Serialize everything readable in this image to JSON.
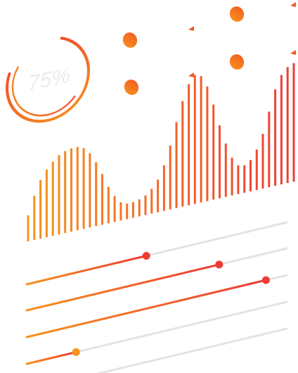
{
  "colors": {
    "accent_orange": "#F7941D",
    "accent_red": "#EF3B36",
    "track_gray": "#E3E3E3",
    "gauge_text": "#EBEBEB"
  },
  "gauge": {
    "label": "75%",
    "value_percent": 75
  },
  "bars": {
    "levels": [
      0.2,
      0.34,
      0.45,
      0.52,
      0.57,
      0.61,
      0.63,
      0.64,
      0.64,
      0.62,
      0.57,
      0.49,
      0.39,
      0.28,
      0.2,
      0.14,
      0.12,
      0.12,
      0.13,
      0.15,
      0.19,
      0.25,
      0.35,
      0.49,
      0.66,
      0.81,
      0.93,
      0.99,
      0.97,
      0.88,
      0.73,
      0.56,
      0.41,
      0.29,
      0.22,
      0.21,
      0.24,
      0.31,
      0.42,
      0.58,
      0.74,
      0.84,
      0.89,
      0.91
    ]
  },
  "sliders": [
    {
      "value": 0.46
    },
    {
      "value": 0.74
    },
    {
      "value": 0.92
    },
    {
      "value": 0.19
    },
    {
      "value": 0.0
    }
  ],
  "icons": [
    "dot-icon",
    "triangle-icon"
  ]
}
